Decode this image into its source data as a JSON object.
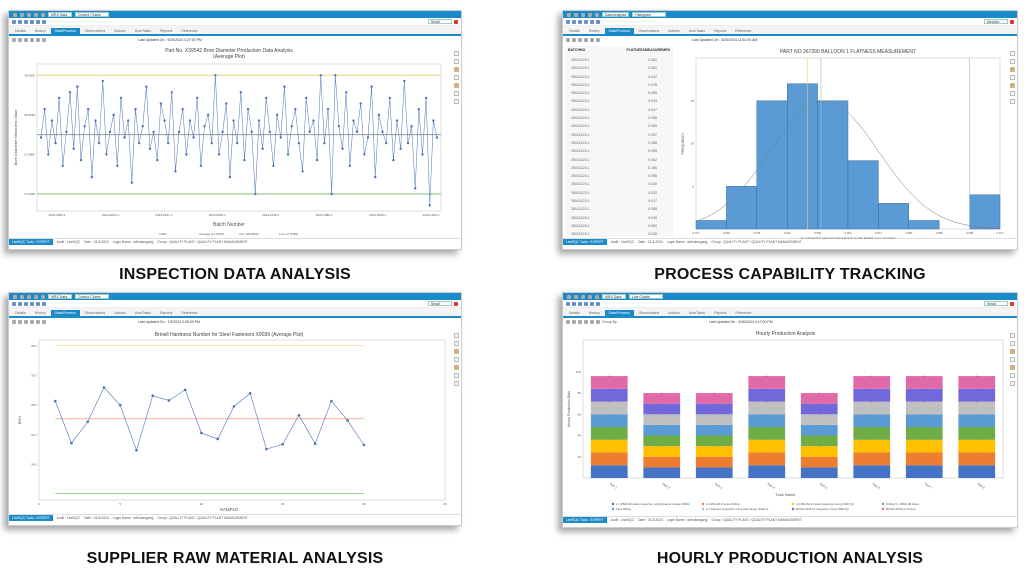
{
  "common": {
    "tabs": [
      "Details",
      "History",
      "Data/Process",
      "Observations",
      "Actions",
      "UserTasks",
      "Reports",
      "Reference"
    ],
    "active_tab": "Data/Process",
    "status_lead": "LiveSQC Tools : EXPERT",
    "status_items": [
      "Audit : LiveSQC",
      "Date : 23-8-2024",
      "Login Name : adhokangang",
      "Group : QUALITY PLANT / QUALITY PLANT MANAGEMENT"
    ],
    "accent": "#1b8ac9"
  },
  "panels": [
    {
      "caption": "INSPECTION DATA ANALYSIS",
      "combo1": "MRS Data",
      "combo2": "Control Charts",
      "toolbar_select": "Small",
      "last_updated": "Last Updated On : 5/20/2024 4:27:00 PM"
    },
    {
      "caption": "PROCESS CAPABILITY TRACKING",
      "combo1": "Data Analysis",
      "combo2": "Histogram",
      "toolbar_select": "Medium",
      "last_updated": "Last Updated On : 5/20/2024 11:51:00 AM"
    },
    {
      "caption": "SUPPLIER RAW MATERIAL ANALYSIS",
      "combo1": "MRS Data",
      "combo2": "Control Charts",
      "toolbar_select": "Small",
      "last_updated": "Last Updated On : 7/3/2024 3:28:00 PM"
    },
    {
      "caption": "HOURLY PRODUCTION ANALYSIS",
      "combo1": "MRS Data",
      "combo2": "Live Charts",
      "toolbar_select": "Small",
      "last_updated": "Last Updated On : 4/26/2024 4:17:00 PM",
      "group_by": "Group By"
    }
  ],
  "table": {
    "headers": [
      "BATCHNO",
      "FLATNESSMEASUREMEN"
    ],
    "rows": [
      [
        "26010123-1",
        "0.062"
      ],
      [
        "26010123-1",
        "0.052"
      ],
      [
        "26010123-1",
        "0.042"
      ],
      [
        "26010123-1",
        "0.078"
      ],
      [
        "26010123-1",
        "0.065"
      ],
      [
        "26010123-1",
        "0.043"
      ],
      [
        "26010123-1",
        "0.047"
      ],
      [
        "26010123-1",
        "0.058"
      ],
      [
        "26010123-1",
        "0.059"
      ],
      [
        "26010123-1",
        "0.057"
      ],
      [
        "26010123-1",
        "0.058"
      ],
      [
        "26010123-1",
        "0.055"
      ],
      [
        "26010123-1",
        "0.062"
      ],
      [
        "26010123-1",
        "0.106"
      ],
      [
        "26010123-1",
        "0.055"
      ],
      [
        "26010123-1",
        "0.040"
      ],
      [
        "26010123-1",
        "0.032"
      ],
      [
        "26010123-1",
        "0.017"
      ],
      [
        "26010123-1",
        "0.055"
      ],
      [
        "26010123-1",
        "0.049"
      ],
      [
        "26010123-1",
        "0.060"
      ],
      [
        "26010123-1",
        "0.046"
      ]
    ]
  },
  "chart_data": [
    {
      "type": "line",
      "title": "Part No. X39542 Bore Diameter Production Data Analysis",
      "subtitle": "(Average Plot)",
      "xlabel": "Batch Number",
      "ylabel": "Bore Diameter Measured Value",
      "ylim": [
        17.93,
        18.06
      ],
      "yticks": [
        "18.0500",
        "18.0150",
        "17.9800",
        "17.9450"
      ],
      "ytick_values": [
        18.05,
        18.015,
        17.98,
        17.945
      ],
      "xtick_labels": [
        "2023-9846-1",
        "2023-0210-1",
        "2023-0347-1",
        "2023-0665-1",
        "2023-1245-1",
        "2022-2985-1",
        "2023-3639-1",
        "2023-1260-1"
      ],
      "limits": {
        "ucl": 18.05,
        "average": 17.9975,
        "lcl": 17.945
      },
      "legend": [
        "X-Bar",
        "Average (17.9975)",
        "UCL (18.0500)",
        "LCL (17.9450)"
      ],
      "colors": {
        "series": "#4a72b8",
        "ucl": "#f0d070",
        "average": "#999999",
        "lcl": "#7dc36b"
      },
      "values": [
        17.995,
        18.02,
        17.98,
        18.01,
        17.99,
        18.03,
        17.97,
        18.0,
        18.035,
        17.985,
        18.04,
        17.975,
        18.005,
        18.02,
        17.96,
        18.01,
        17.99,
        18.045,
        17.98,
        18.0,
        18.015,
        17.97,
        18.03,
        17.995,
        18.01,
        17.955,
        18.02,
        17.99,
        18.005,
        18.04,
        17.985,
        18.0,
        17.975,
        18.025,
        18.01,
        17.99,
        18.035,
        17.965,
        18.0,
        18.02,
        17.98,
        18.01,
        17.995,
        18.03,
        17.97,
        18.005,
        18.015,
        17.99,
        18.05,
        17.98,
        18.0,
        18.025,
        17.96,
        18.01,
        17.99,
        18.035,
        17.975,
        18.02,
        18.0,
        17.945,
        18.01,
        17.985,
        18.03,
        18.0,
        17.97,
        18.015,
        17.995,
        18.04,
        17.98,
        18.005,
        18.02,
        17.99,
        17.965,
        18.03,
        18.0,
        18.01,
        17.975,
        18.05,
        17.99,
        18.02,
        17.945,
        18.05,
        18.005,
        17.985,
        18.035,
        17.97,
        18.01,
        18.0,
        18.025,
        17.98,
        17.995,
        18.04,
        17.96,
        18.015,
        18.0,
        17.99,
        18.03,
        17.975,
        18.01,
        17.985,
        18.045,
        17.99,
        18.005,
        17.95,
        18.02,
        17.98,
        18.03,
        17.935,
        18.01,
        17.995
      ]
    },
    {
      "type": "bar",
      "subtype": "histogram",
      "title": "PART NO 267390 BALLOON 1 FLATNESS MEASUREMENT",
      "xlabel": "FLATNESS MEASUREMENT FOR PART NO 267390",
      "ylabel": "FREQUENCY",
      "bin_edges": [
        "0.017",
        "0.026",
        "0.035",
        "0.044",
        "0.053",
        "0.062",
        "0.071",
        "0.080",
        "0.089",
        "0.098",
        "0.107"
      ],
      "values": [
        1,
        5,
        15,
        17,
        15,
        8,
        3,
        1,
        0,
        4
      ],
      "ylim": [
        0,
        20
      ],
      "yticks": [
        5,
        10,
        15
      ],
      "normal_curve": {
        "mean": 0.055,
        "sd": 0.016
      },
      "reference_lines": [
        0.05,
        0.054,
        0.098
      ],
      "colors": {
        "bar": "#5b9bd5",
        "edge": "#2e5e8e",
        "curve": "#777777",
        "ref1": "#f0d070",
        "ref2": "#9cb8cc"
      }
    },
    {
      "type": "line",
      "title": "Brinell Hardness Number for Steel Fasteners X9039 (Average Plot)",
      "xlabel": "SAMPLE",
      "ylabel": "BHN",
      "xlim": [
        0,
        25
      ],
      "xticks": [
        0,
        5,
        10,
        15,
        20,
        25
      ],
      "ylim": [
        33.6,
        36.3
      ],
      "yticks": [
        36.2,
        35.7,
        35.2,
        34.7,
        34.2
      ],
      "x": [
        1,
        2,
        3,
        4,
        5,
        6,
        7,
        8,
        9,
        10,
        11,
        12,
        13,
        14,
        15,
        16,
        17,
        18,
        19,
        20
      ],
      "values": [
        35.27,
        34.56,
        34.92,
        35.5,
        35.2,
        34.44,
        35.36,
        35.28,
        35.46,
        34.73,
        34.63,
        35.18,
        35.4,
        34.46,
        34.54,
        35.03,
        34.55,
        35.27,
        34.94,
        34.53
      ],
      "limits": {
        "ucl": 36.21,
        "average": 34.97,
        "lcl": 33.71
      },
      "legend": [
        "X-Bar",
        "Average (34.9700)",
        "UCL (36.2100)",
        "LCL (33.7100)"
      ],
      "colors": {
        "series": "#4a72b8",
        "ucl": "#f0d070",
        "average": "#f08060",
        "lcl": "#7dc36b"
      }
    },
    {
      "type": "bar",
      "subtype": "stacked",
      "title": "Hourly Production Analysis",
      "xlabel": "Task Name",
      "ylabel": "Hourly Production Data",
      "categories": [
        "Task 1",
        "Task 2",
        "Task 3",
        "Task 4",
        "Task 5",
        "Task 6",
        "Task 7",
        "Task 8"
      ],
      "ylim": [
        0,
        130
      ],
      "yticks": [
        20,
        40,
        60,
        80,
        100
      ],
      "series": [
        {
          "name": "2.1 Ø8A0.28 Holes Inspection using Reamer Gauge 6D902",
          "color": "#4472c4",
          "values": [
            12,
            10,
            10,
            12,
            10,
            12,
            12,
            12
          ]
        },
        {
          "name": "4.1 Ø8.2A0.2 Holes Drilling",
          "color": "#ed7d31",
          "values": [
            12,
            10,
            10,
            12,
            10,
            12,
            12,
            12
          ]
        },
        {
          "name": "4.2 Ø8.2A0.2 Holes Inspection using CMM (Q)",
          "color": "#ffc000",
          "values": [
            12,
            10,
            10,
            12,
            10,
            12,
            12,
            12
          ]
        },
        {
          "name": "Drilling 5 × Ø8A0.28 Holes",
          "color": "#70ad47",
          "values": [
            12,
            10,
            10,
            12,
            10,
            12,
            12,
            12
          ]
        },
        {
          "name": "Face Milling",
          "color": "#5b9bd5",
          "values": [
            12,
            10,
            10,
            12,
            10,
            12,
            12,
            12
          ]
        },
        {
          "name": "3.1 Flatness Inspection using Dial Gauge (Station)",
          "color": "#c0c0c0",
          "values": [
            12,
            10,
            10,
            12,
            10,
            12,
            12,
            12
          ]
        },
        {
          "name": "Ø27A0.28 Bore Inspection using CMM (Q)",
          "color": "#7169db",
          "values": [
            12,
            10,
            10,
            12,
            10,
            12,
            12,
            12
          ]
        },
        {
          "name": "Ø27A0.28 Bore Turning",
          "color": "#e06aa8",
          "values": [
            12,
            10,
            10,
            12,
            10,
            12,
            12,
            12
          ]
        }
      ]
    }
  ]
}
